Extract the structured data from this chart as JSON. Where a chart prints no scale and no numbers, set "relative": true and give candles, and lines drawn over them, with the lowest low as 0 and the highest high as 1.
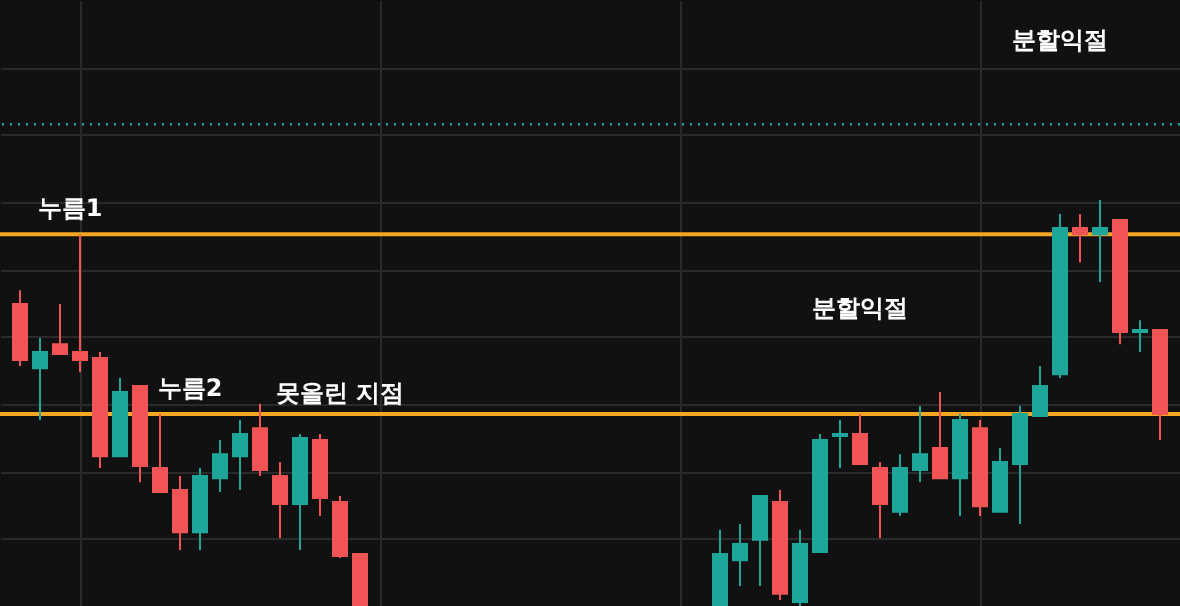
{
  "chart_data": {
    "type": "candlestick",
    "relative": true,
    "grid": true,
    "categories": [
      null,
      null,
      null,
      null,
      null,
      null,
      null,
      null,
      null,
      null,
      null,
      null,
      null,
      null,
      null,
      null,
      null,
      null,
      null,
      null,
      null,
      null,
      null,
      null,
      null,
      null,
      null,
      null,
      null,
      null,
      null,
      null,
      null,
      null,
      null,
      null,
      null,
      null,
      null,
      null,
      null,
      null,
      null,
      null,
      null,
      null,
      null,
      null,
      null,
      null,
      null,
      null,
      null,
      null,
      null,
      null,
      null,
      null
    ],
    "ohlc": [
      [
        0.744,
        0.778,
        0.591,
        0.606
      ],
      [
        0.586,
        0.66,
        0.458,
        0.626
      ],
      [
        0.645,
        0.744,
        0.621,
        0.621
      ],
      [
        0.626,
        0.916,
        0.576,
        0.606
      ],
      [
        0.611,
        0.626,
        0.34,
        0.369
      ],
      [
        0.369,
        0.562,
        0.369,
        0.527
      ],
      [
        0.542,
        0.542,
        0.305,
        0.345
      ],
      [
        0.34,
        0.473,
        0.281,
        0.281
      ],
      [
        0.286,
        0.32,
        0.138,
        0.182
      ],
      [
        0.182,
        0.34,
        0.138,
        0.32
      ],
      [
        0.315,
        0.409,
        0.281,
        0.374
      ],
      [
        0.369,
        0.458,
        0.286,
        0.424
      ],
      [
        0.438,
        0.498,
        0.32,
        0.335
      ],
      [
        0.32,
        0.355,
        0.167,
        0.251
      ],
      [
        0.251,
        0.424,
        0.138,
        0.414
      ],
      [
        0.409,
        0.424,
        0.222,
        0.266
      ],
      [
        0.256,
        0.271,
        0.118,
        0.123
      ],
      [
        0.128,
        0.128,
        0,
        0
      ],
      null,
      null,
      null,
      null,
      null,
      null,
      null,
      null,
      null,
      null,
      null,
      null,
      null,
      null,
      null,
      null,
      null,
      [
        0,
        0.187,
        0,
        0.128
      ],
      [
        0.113,
        0.202,
        0.049,
        0.153
      ],
      [
        0.163,
        0.271,
        0.049,
        0.271
      ],
      [
        0.256,
        0.286,
        0.015,
        0.03
      ],
      [
        0.01,
        0.187,
        0,
        0.153
      ],
      [
        0.133,
        0.424,
        0.133,
        0.409
      ],
      [
        0.419,
        0.458,
        0.34,
        0.424
      ],
      [
        0.424,
        0.473,
        0.35,
        0.35
      ],
      [
        0.34,
        0.355,
        0.167,
        0.251
      ],
      [
        0.232,
        0.374,
        0.222,
        0.34
      ],
      [
        0.335,
        0.493,
        0.305,
        0.374
      ],
      [
        0.389,
        0.527,
        0.315,
        0.315
      ],
      [
        0.315,
        0.473,
        0.222,
        0.458
      ],
      [
        0.438,
        0.458,
        0.222,
        0.246
      ],
      [
        0.232,
        0.389,
        0.232,
        0.355
      ],
      [
        0.35,
        0.493,
        0.202,
        0.473
      ],
      [
        0.468,
        0.591,
        0.468,
        0.542
      ],
      [
        0.571,
        0.966,
        0.562,
        0.931
      ],
      [
        0.931,
        0.966,
        0.847,
        0.916
      ],
      [
        0.916,
        1,
        0.798,
        0.931
      ],
      [
        0.951,
        0.951,
        0.645,
        0.675
      ],
      [
        0.675,
        0.704,
        0.626,
        0.68
      ],
      [
        0.68,
        0.68,
        0.409,
        0.473
      ]
    ],
    "colors": [
      "#f05454",
      "#1ea69a",
      "#f05454",
      "#f05454",
      "#f05454",
      "#1ea69a",
      "#f05454",
      "#f05454",
      "#f05454",
      "#1ea69a",
      "#1ea69a",
      "#1ea69a",
      "#f05454",
      "#f05454",
      "#1ea69a",
      "#f05454",
      "#f05454",
      "#f05454",
      null,
      null,
      null,
      null,
      null,
      null,
      null,
      null,
      null,
      null,
      null,
      null,
      null,
      null,
      null,
      null,
      null,
      "#1ea69a",
      "#1ea69a",
      "#1ea69a",
      "#f05454",
      "#1ea69a",
      "#1ea69a",
      "#1ea69a",
      "#f05454",
      "#f05454",
      "#1ea69a",
      "#1ea69a",
      "#f05454",
      "#1ea69a",
      "#f05454",
      "#1ea69a",
      "#1ea69a",
      "#1ea69a",
      "#1ea69a",
      "#f05454",
      "#1ea69a",
      "#f05454",
      "#1ea69a",
      "#f05454"
    ],
    "ref_lines": [
      {
        "axis": "y",
        "value": 0.916,
        "label": "누름1",
        "color": "#f5a623",
        "line_style": "solid"
      },
      {
        "axis": "y",
        "value": 0.473,
        "label": "누름2",
        "color": "#f5a623",
        "line_style": "solid"
      },
      {
        "axis": "y",
        "value": 1.187,
        "color": "#1ea69a",
        "line_style": "dotted"
      }
    ],
    "annotations": [
      "못올린 지점",
      "분할익절",
      "분할익절"
    ]
  }
}
